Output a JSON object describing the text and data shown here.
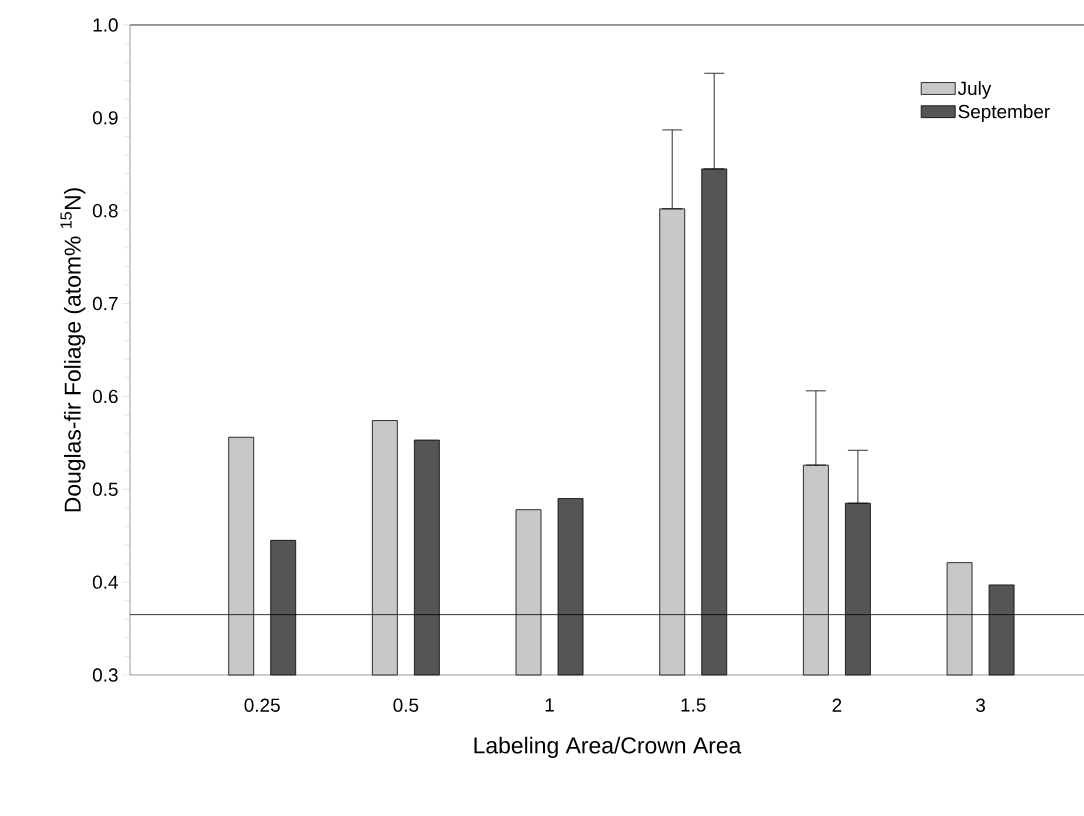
{
  "chart_data": {
    "type": "bar",
    "xlabel": "Labeling Area/Crown Area",
    "ylabel": "Douglas-fir Foliage (atom% $^{15}$N)",
    "categories": [
      "0.25",
      "0.5",
      "1",
      "1.5",
      "2",
      "3"
    ],
    "series": [
      {
        "name": "July",
        "color": "#c8c8c8",
        "values": [
          0.556,
          0.574,
          0.478,
          0.802,
          0.526,
          0.421
        ],
        "errors": [
          null,
          null,
          null,
          [
            0.802,
            0.887
          ],
          [
            0.526,
            0.606
          ],
          null
        ]
      },
      {
        "name": "September",
        "color": "#555555",
        "values": [
          0.445,
          0.553,
          0.49,
          0.845,
          0.485,
          0.397
        ],
        "errors": [
          null,
          null,
          null,
          [
            0.845,
            0.948
          ],
          [
            0.485,
            0.542
          ],
          null
        ]
      }
    ],
    "ylim": [
      0.3,
      1.0
    ],
    "yticks": [
      0.3,
      0.4,
      0.5,
      0.6,
      0.7,
      0.8,
      0.9,
      {
        "value": 1.0,
        "label": "1.0"
      }
    ],
    "ref_lines": [
      {
        "axis": "y",
        "value": 0.365,
        "color": "#000000"
      }
    ],
    "legend": "top right",
    "grid": false
  }
}
